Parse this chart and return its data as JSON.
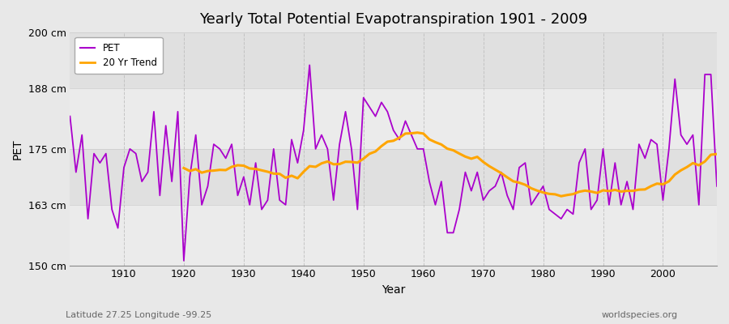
{
  "title": "Yearly Total Potential Evapotranspiration 1901 - 2009",
  "xlabel": "Year",
  "ylabel": "PET",
  "subtitle_left": "Latitude 27.25 Longitude -99.25",
  "subtitle_right": "worldspecies.org",
  "ylim": [
    150,
    200
  ],
  "xlim": [
    1901,
    2009
  ],
  "yticks": [
    150,
    163,
    175,
    188,
    200
  ],
  "ytick_labels": [
    "150 cm",
    "163 cm",
    "175 cm",
    "188 cm",
    "200 cm"
  ],
  "xticks": [
    1910,
    1920,
    1930,
    1940,
    1950,
    1960,
    1970,
    1980,
    1990,
    2000
  ],
  "pet_color": "#AA00CC",
  "trend_color": "#FFA500",
  "bg_color": "#E8E8E8",
  "plot_bg_color": "#E0E0E0",
  "band_light": "#EBEBEB",
  "band_dark": "#DCDCDC",
  "legend_pet": "PET",
  "legend_trend": "20 Yr Trend",
  "years": [
    1901,
    1902,
    1903,
    1904,
    1905,
    1906,
    1907,
    1908,
    1909,
    1910,
    1911,
    1912,
    1913,
    1914,
    1915,
    1916,
    1917,
    1918,
    1919,
    1920,
    1921,
    1922,
    1923,
    1924,
    1925,
    1926,
    1927,
    1928,
    1929,
    1930,
    1931,
    1932,
    1933,
    1934,
    1935,
    1936,
    1937,
    1938,
    1939,
    1940,
    1941,
    1942,
    1943,
    1944,
    1945,
    1946,
    1947,
    1948,
    1949,
    1950,
    1951,
    1952,
    1953,
    1954,
    1955,
    1956,
    1957,
    1958,
    1959,
    1960,
    1961,
    1962,
    1963,
    1964,
    1965,
    1966,
    1967,
    1968,
    1969,
    1970,
    1971,
    1972,
    1973,
    1974,
    1975,
    1976,
    1977,
    1978,
    1979,
    1980,
    1981,
    1982,
    1983,
    1984,
    1985,
    1986,
    1987,
    1988,
    1989,
    1990,
    1991,
    1992,
    1993,
    1994,
    1995,
    1996,
    1997,
    1998,
    1999,
    2000,
    2001,
    2002,
    2003,
    2004,
    2005,
    2006,
    2007,
    2008,
    2009
  ],
  "pet_values": [
    182,
    170,
    178,
    160,
    174,
    172,
    174,
    162,
    158,
    171,
    175,
    174,
    168,
    170,
    183,
    165,
    180,
    168,
    183,
    151,
    169,
    178,
    163,
    167,
    176,
    175,
    173,
    176,
    165,
    169,
    163,
    172,
    162,
    164,
    175,
    164,
    163,
    177,
    172,
    179,
    193,
    175,
    178,
    175,
    164,
    176,
    183,
    175,
    162,
    186,
    184,
    182,
    185,
    183,
    179,
    177,
    181,
    178,
    175,
    175,
    168,
    163,
    168,
    157,
    157,
    162,
    170,
    166,
    170,
    164,
    166,
    167,
    170,
    165,
    162,
    171,
    172,
    163,
    165,
    167,
    162,
    161,
    160,
    162,
    161,
    172,
    175,
    162,
    164,
    175,
    163,
    172,
    163,
    168,
    162,
    176,
    173,
    177,
    176,
    164,
    175,
    190,
    178,
    176,
    178,
    163,
    191,
    191,
    167
  ]
}
